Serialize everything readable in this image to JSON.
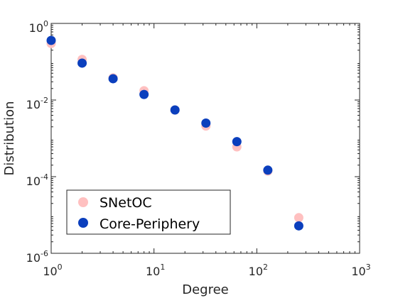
{
  "chart_data": {
    "type": "scatter",
    "xlabel": "Degree",
    "ylabel": "Distribution",
    "xscale": "log",
    "yscale": "log",
    "xlim": [
      1,
      1000
    ],
    "ylim": [
      1e-06,
      1
    ],
    "x_ticks": [
      {
        "base": "10",
        "exp": "0"
      },
      {
        "base": "10",
        "exp": "1"
      },
      {
        "base": "10",
        "exp": "2"
      },
      {
        "base": "10",
        "exp": "3"
      }
    ],
    "y_ticks": [
      {
        "base": "10",
        "exp": "-6"
      },
      {
        "base": "10",
        "exp": "-4"
      },
      {
        "base": "10",
        "exp": "-2"
      },
      {
        "base": "10",
        "exp": "0"
      }
    ],
    "legend_position": "bottom-left",
    "series": [
      {
        "name": "SNetOC",
        "color": "#ffc0c0",
        "points": [
          {
            "x": 1,
            "y": 0.3
          },
          {
            "x": 2,
            "y": 0.115
          },
          {
            "x": 4,
            "y": 0.038
          },
          {
            "x": 8,
            "y": 0.0175
          },
          {
            "x": 16,
            "y": 0.0055
          },
          {
            "x": 32,
            "y": 0.0021
          },
          {
            "x": 64,
            "y": 0.0006
          },
          {
            "x": 128,
            "y": 0.00014
          },
          {
            "x": 256,
            "y": 8.5e-06
          }
        ]
      },
      {
        "name": "Core-Periphery",
        "color": "#0b3fbd",
        "points": [
          {
            "x": 1,
            "y": 0.36
          },
          {
            "x": 2,
            "y": 0.092
          },
          {
            "x": 4,
            "y": 0.036
          },
          {
            "x": 8,
            "y": 0.014
          },
          {
            "x": 16,
            "y": 0.0055
          },
          {
            "x": 32,
            "y": 0.0025
          },
          {
            "x": 64,
            "y": 0.00082
          },
          {
            "x": 128,
            "y": 0.000148
          },
          {
            "x": 256,
            "y": 5.2e-06
          }
        ]
      }
    ]
  }
}
